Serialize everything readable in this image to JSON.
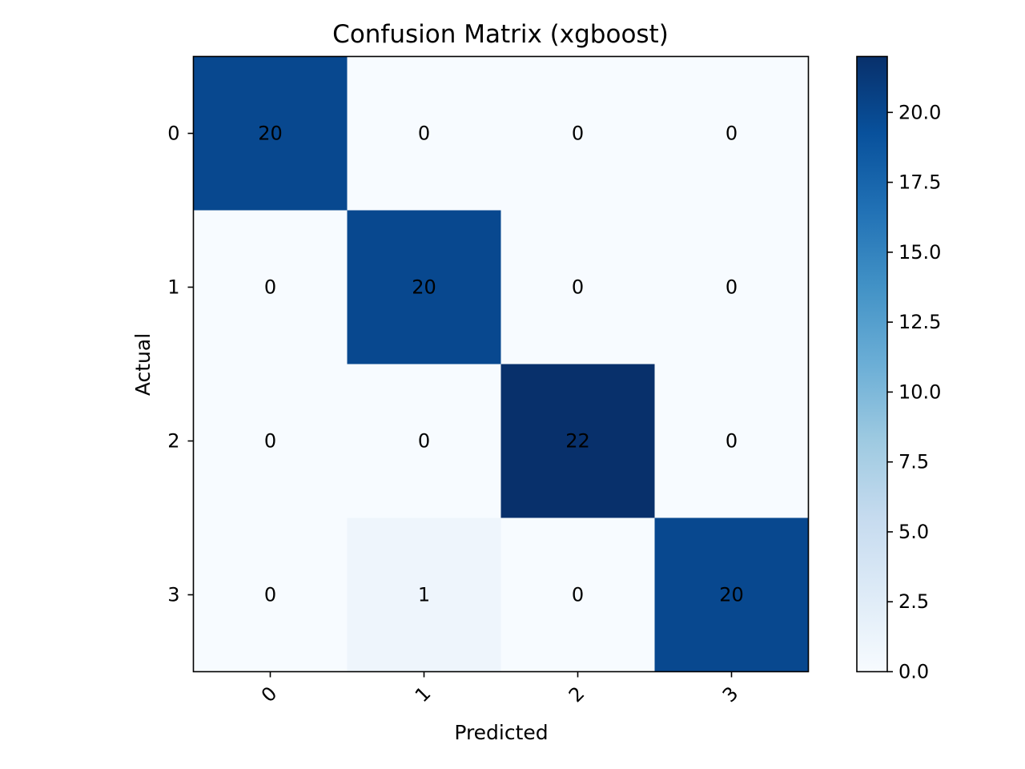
{
  "chart_data": {
    "type": "heatmap",
    "title": "Confusion Matrix (xgboost)",
    "xlabel": "Predicted",
    "ylabel": "Actual",
    "x_categories": [
      "0",
      "1",
      "2",
      "3"
    ],
    "y_categories": [
      "0",
      "1",
      "2",
      "3"
    ],
    "values": [
      [
        20,
        0,
        0,
        0
      ],
      [
        0,
        20,
        0,
        0
      ],
      [
        0,
        0,
        22,
        0
      ],
      [
        0,
        1,
        0,
        20
      ]
    ],
    "colormap": "Blues",
    "colorbar": {
      "range": [
        0,
        22
      ],
      "ticks": [
        0.0,
        2.5,
        5.0,
        7.5,
        10.0,
        12.5,
        15.0,
        17.5,
        20.0
      ],
      "tick_labels": [
        "0.0",
        "2.5",
        "5.0",
        "7.5",
        "10.0",
        "12.5",
        "15.0",
        "17.5",
        "20.0"
      ]
    },
    "grid": false
  }
}
